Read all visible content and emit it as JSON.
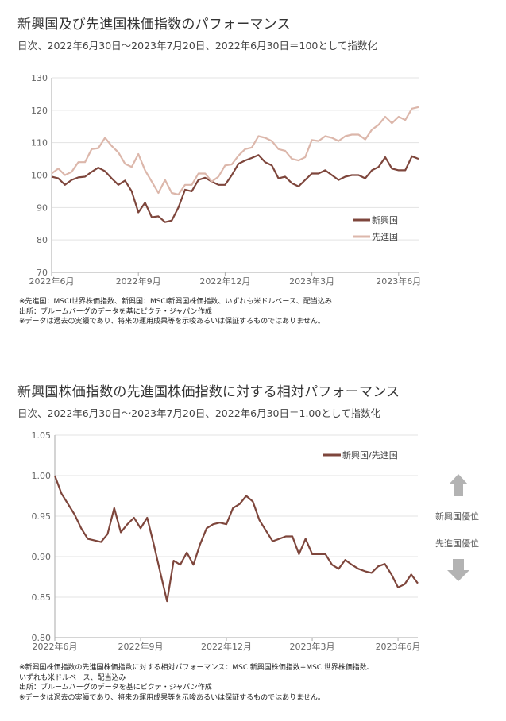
{
  "colors": {
    "emerging": "#7e463c",
    "developed": "#dcb7ab",
    "arrow": "#b3b3b3",
    "grid": "#e3e3e3",
    "axis": "#aaaaaa"
  },
  "chart1": {
    "title": "新興国及び先進国株価指数のパフォーマンス",
    "subtitle": "日次、2022年6月30日～2023年7月20日、2022年6月30日＝100として指数化",
    "notes": [
      "※先進国：MSCI世界株価指数、新興国：MSCI新興国株価指数、いずれも米ドルベース、配当込み",
      "出所：ブルームバーグのデータを基にピクテ・ジャパン作成",
      "※データは過去の実績であり、将来の運用成果等を示唆あるいは保証するものではありません。"
    ]
  },
  "chart2": {
    "title": "新興国株価指数の先進国株価指数に対する相対パフォーマンス",
    "subtitle": "日次、2022年6月30日～2023年7月20日、2022年6月30日＝1.00として指数化",
    "up_label": "新興国優位",
    "down_label": "先進国優位",
    "up_icon": "arrow-up-icon",
    "down_icon": "arrow-down-icon",
    "notes": [
      "※新興国株価指数の先進国株価指数に対する相対パフォーマンス：MSCI新興国株価指数÷MSCI世界株価指数、",
      "いずれも米ドルベース、配当込み",
      "出所：ブルームバーグのデータを基にピクテ・ジャパン作成",
      "※データは過去の実績であり、将来の運用成果等を示唆あるいは保証するものではありません。"
    ]
  },
  "chart_data": [
    {
      "type": "line",
      "title": "新興国及び先進国株価指数のパフォーマンス",
      "xlabel": "",
      "ylabel": "",
      "ylim": [
        70,
        130
      ],
      "yticks": [
        70,
        80,
        90,
        100,
        110,
        120,
        130
      ],
      "xticks": [
        {
          "date": "2022-06-30",
          "label": "2022年6月"
        },
        {
          "date": "2022-09-29",
          "label": "2022年9月"
        },
        {
          "date": "2022-12-29",
          "label": "2022年12月"
        },
        {
          "date": "2023-03-30",
          "label": "2023年3月"
        },
        {
          "date": "2023-06-29",
          "label": "2023年6月"
        }
      ],
      "grid": true,
      "legend": "bottom-right",
      "x": [
        "2022-06-30",
        "2022-07-07",
        "2022-07-14",
        "2022-07-21",
        "2022-07-28",
        "2022-08-04",
        "2022-08-11",
        "2022-08-18",
        "2022-08-25",
        "2022-09-01",
        "2022-09-08",
        "2022-09-15",
        "2022-09-22",
        "2022-09-29",
        "2022-10-06",
        "2022-10-13",
        "2022-10-20",
        "2022-10-27",
        "2022-11-03",
        "2022-11-10",
        "2022-11-17",
        "2022-11-24",
        "2022-12-01",
        "2022-12-08",
        "2022-12-15",
        "2022-12-22",
        "2022-12-29",
        "2023-01-05",
        "2023-01-12",
        "2023-01-19",
        "2023-01-26",
        "2023-02-02",
        "2023-02-09",
        "2023-02-16",
        "2023-02-23",
        "2023-03-02",
        "2023-03-09",
        "2023-03-16",
        "2023-03-23",
        "2023-03-30",
        "2023-04-06",
        "2023-04-13",
        "2023-04-20",
        "2023-04-27",
        "2023-05-04",
        "2023-05-11",
        "2023-05-18",
        "2023-05-25",
        "2023-06-01",
        "2023-06-08",
        "2023-06-15",
        "2023-06-22",
        "2023-06-29",
        "2023-07-06",
        "2023-07-13",
        "2023-07-20"
      ],
      "series": [
        {
          "name": "新興国",
          "color": "#7e463c",
          "values": [
            99.5,
            99,
            97,
            98.5,
            99.3,
            99.5,
            101,
            102.3,
            101.2,
            99,
            97,
            98.3,
            95,
            88.5,
            91.5,
            87,
            87.3,
            85.5,
            86,
            90,
            95.5,
            95,
            98.5,
            99.2,
            98,
            97,
            97,
            100,
            103.5,
            104.5,
            105.3,
            106.2,
            104,
            103,
            99,
            99.5,
            97.5,
            96.5,
            98.5,
            100.5,
            100.5,
            101.5,
            100,
            98.5,
            99.5,
            100,
            100,
            99,
            101.5,
            102.5,
            105.5,
            102,
            101.5,
            101.5,
            105.8,
            105
          ]
        },
        {
          "name": "先進国",
          "color": "#dcb7ab",
          "values": [
            100.5,
            102,
            100,
            101,
            104,
            104,
            108,
            108.3,
            111.5,
            109,
            107,
            103.5,
            102.5,
            106.5,
            101.5,
            98,
            94.5,
            98.5,
            94.5,
            94,
            97,
            97,
            100.5,
            100.5,
            98,
            99.5,
            103,
            103.3,
            106,
            108,
            108.5,
            112,
            111.5,
            110.5,
            108,
            107.5,
            105,
            104.5,
            105.5,
            110.8,
            110.5,
            112,
            111.5,
            110.5,
            112,
            112.5,
            112.5,
            111,
            114,
            115.5,
            118,
            116,
            118,
            117,
            120.5,
            121
          ]
        }
      ]
    },
    {
      "type": "line",
      "title": "新興国株価指数の先進国株価指数に対する相対パフォーマンス",
      "xlabel": "",
      "ylabel": "",
      "ylim": [
        0.8,
        1.05
      ],
      "yticks": [
        "0.80",
        "0.85",
        "0.90",
        "0.95",
        "1.00",
        "1.05"
      ],
      "xticks": [
        {
          "date": "2022-06-30",
          "label": "2022年6月"
        },
        {
          "date": "2022-09-29",
          "label": "2022年9月"
        },
        {
          "date": "2022-12-29",
          "label": "2022年12月"
        },
        {
          "date": "2023-03-30",
          "label": "2023年3月"
        },
        {
          "date": "2023-06-29",
          "label": "2023年6月"
        }
      ],
      "grid": true,
      "legend": "top-right",
      "x": [
        "2022-06-30",
        "2022-07-07",
        "2022-07-14",
        "2022-07-21",
        "2022-07-28",
        "2022-08-04",
        "2022-08-11",
        "2022-08-18",
        "2022-08-25",
        "2022-09-01",
        "2022-09-08",
        "2022-09-15",
        "2022-09-22",
        "2022-09-29",
        "2022-10-06",
        "2022-10-13",
        "2022-10-20",
        "2022-10-27",
        "2022-11-03",
        "2022-11-10",
        "2022-11-17",
        "2022-11-24",
        "2022-12-01",
        "2022-12-08",
        "2022-12-15",
        "2022-12-22",
        "2022-12-29",
        "2023-01-05",
        "2023-01-12",
        "2023-01-19",
        "2023-01-26",
        "2023-02-02",
        "2023-02-09",
        "2023-02-16",
        "2023-02-23",
        "2023-03-02",
        "2023-03-09",
        "2023-03-16",
        "2023-03-23",
        "2023-03-30",
        "2023-04-06",
        "2023-04-13",
        "2023-04-20",
        "2023-04-27",
        "2023-05-04",
        "2023-05-11",
        "2023-05-18",
        "2023-05-25",
        "2023-06-01",
        "2023-06-08",
        "2023-06-15",
        "2023-06-22",
        "2023-06-29",
        "2023-07-06",
        "2023-07-13",
        "2023-07-20"
      ],
      "series": [
        {
          "name": "新興国/先進国",
          "color": "#7e463c",
          "values": [
            1.0,
            0.978,
            0.965,
            0.952,
            0.935,
            0.922,
            0.92,
            0.918,
            0.928,
            0.96,
            0.93,
            0.94,
            0.948,
            0.935,
            0.948,
            0.915,
            0.88,
            0.845,
            0.895,
            0.89,
            0.905,
            0.89,
            0.915,
            0.935,
            0.94,
            0.942,
            0.94,
            0.96,
            0.965,
            0.975,
            0.968,
            0.945,
            0.932,
            0.919,
            0.922,
            0.925,
            0.925,
            0.903,
            0.922,
            0.903,
            0.903,
            0.903,
            0.89,
            0.885,
            0.896,
            0.89,
            0.885,
            0.882,
            0.88,
            0.888,
            0.891,
            0.878,
            0.862,
            0.866,
            0.878,
            0.867
          ]
        }
      ]
    }
  ]
}
